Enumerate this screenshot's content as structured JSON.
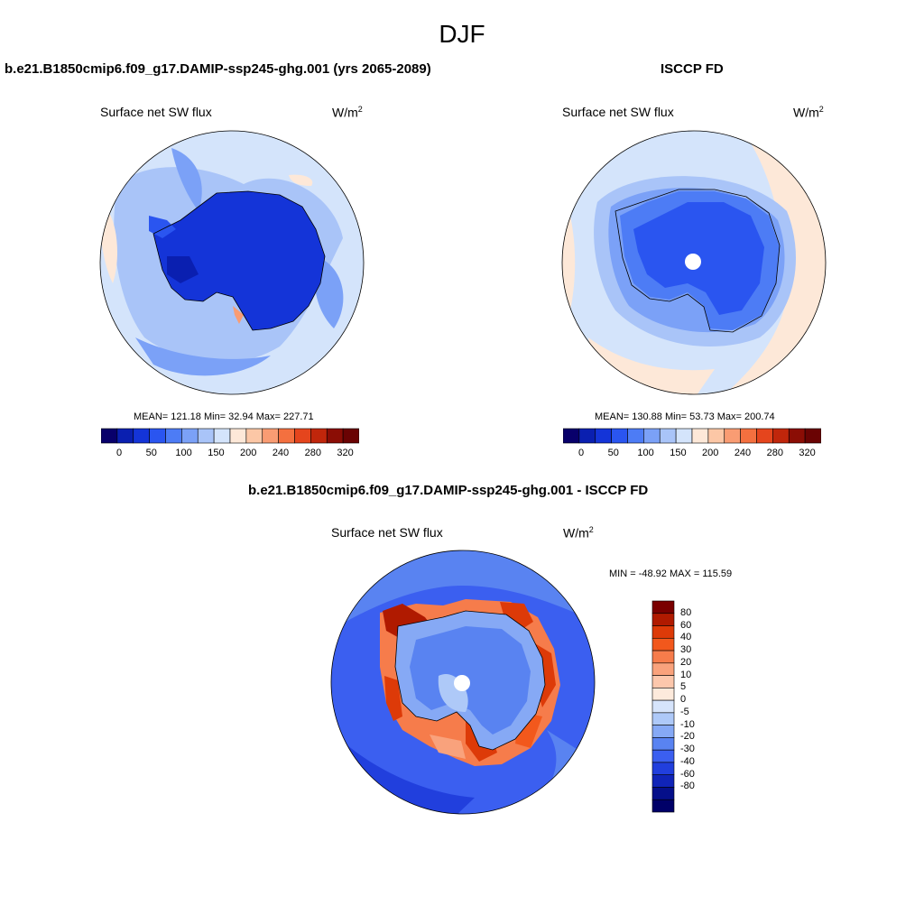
{
  "figure_title": "DJF",
  "panels": [
    {
      "title": "b.e21.B1850cmip6.f09_g17.DAMIP-ssp245-ghg.001 (yrs 2065-2089)",
      "variable": "Surface net SW flux",
      "units_base": "W/m",
      "units_exp": "2",
      "stats": "MEAN= 121.18  Min=  32.94  Max= 227.71"
    },
    {
      "title": "ISCCP FD",
      "variable": "Surface net SW flux",
      "units_base": "W/m",
      "units_exp": "2",
      "stats": "MEAN= 130.88  Min=  53.73  Max= 200.74"
    },
    {
      "title": "b.e21.B1850cmip6.f09_g17.DAMIP-ssp245-ghg.001 - ISCCP FD",
      "variable": "Surface net SW flux",
      "units_base": "W/m",
      "units_exp": "2",
      "stats": "MIN = -48.92  MAX = 115.59"
    }
  ],
  "colorbar_main": {
    "colors": [
      "#08006b",
      "#0a1fb0",
      "#1434d8",
      "#2a55f0",
      "#4d7cf5",
      "#7ba1f7",
      "#a9c4f8",
      "#d4e4fb",
      "#fde8d8",
      "#fcc7a6",
      "#f99c73",
      "#f4703f",
      "#e5451d",
      "#c0260b",
      "#8b0d05",
      "#6a0303"
    ],
    "labels": [
      "0",
      "50",
      "100",
      "150",
      "200",
      "240",
      "280",
      "320"
    ]
  },
  "colorbar_diff": {
    "colors_top_to_bottom": [
      "#7a0000",
      "#b01a00",
      "#dd3a08",
      "#f2581c",
      "#f67c4b",
      "#f9a27c",
      "#fcc7ac",
      "#fdeadc",
      "#d6e4fb",
      "#aec9f8",
      "#86a9f5",
      "#5983f1",
      "#3b5ff0",
      "#213fdd",
      "#1024b8",
      "#050f8a",
      "#000068"
    ],
    "labels_top_to_bottom": [
      "80",
      "60",
      "40",
      "30",
      "20",
      "10",
      "5",
      "0",
      "-5",
      "-10",
      "-20",
      "-30",
      "-40",
      "-60",
      "-80"
    ]
  }
}
